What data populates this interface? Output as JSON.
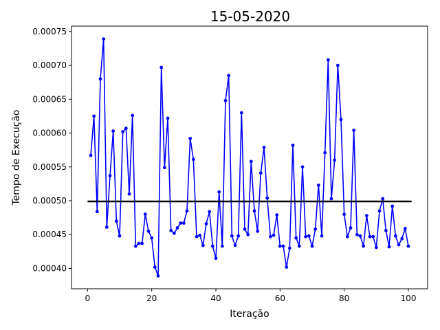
{
  "chart_data": {
    "type": "line",
    "title": "15-05-2020",
    "xlabel": "Iteração",
    "ylabel": "Tempo de Execução",
    "xlim": [
      -5,
      106
    ],
    "ylim": [
      0.00037,
      0.000758
    ],
    "x_ticks": [
      0,
      20,
      40,
      60,
      80,
      100
    ],
    "x_tick_labels": [
      "0",
      "20",
      "40",
      "60",
      "80",
      "100"
    ],
    "y_ticks": [
      0.0004,
      0.00045,
      0.0005,
      0.00055,
      0.0006,
      0.00065,
      0.0007,
      0.00075
    ],
    "y_tick_labels": [
      "0.00040",
      "0.00045",
      "0.00050",
      "0.00055",
      "0.00060",
      "0.00065",
      "0.00070",
      "0.00075"
    ],
    "grid": false,
    "series": [
      {
        "color": "#0000ff",
        "marker": "circle",
        "x": [
          1,
          2,
          3,
          4,
          5,
          6,
          7,
          8,
          9,
          10,
          11,
          12,
          13,
          14,
          15,
          16,
          17,
          18,
          19,
          20,
          21,
          22,
          23,
          24,
          25,
          26,
          27,
          28,
          29,
          30,
          31,
          32,
          33,
          34,
          35,
          36,
          37,
          38,
          39,
          40,
          41,
          42,
          43,
          44,
          45,
          46,
          47,
          48,
          49,
          50,
          51,
          52,
          53,
          54,
          55,
          56,
          57,
          58,
          59,
          60,
          61,
          62,
          63,
          64,
          65,
          66,
          67,
          68,
          69,
          70,
          71,
          72,
          73,
          74,
          75,
          76,
          77,
          78,
          79,
          80,
          81,
          82,
          83,
          84,
          85,
          86,
          87,
          88,
          89,
          90,
          91,
          92,
          93,
          94,
          95,
          96,
          97,
          98,
          99,
          100
        ],
        "values": [
          0.000567,
          0.000625,
          0.000484,
          0.00068,
          0.000739,
          0.000461,
          0.000537,
          0.000603,
          0.00047,
          0.000448,
          0.000602,
          0.000607,
          0.00051,
          0.000626,
          0.000433,
          0.000437,
          0.000437,
          0.00048,
          0.000455,
          0.000445,
          0.000402,
          0.000389,
          0.000697,
          0.000549,
          0.000622,
          0.000456,
          0.000452,
          0.00046,
          0.000467,
          0.000467,
          0.000485,
          0.000592,
          0.000561,
          0.000447,
          0.000449,
          0.000434,
          0.000466,
          0.000484,
          0.000433,
          0.000415,
          0.000513,
          0.000433,
          0.000648,
          0.000685,
          0.000448,
          0.000434,
          0.000448,
          0.00063,
          0.000458,
          0.00045,
          0.000558,
          0.000485,
          0.000455,
          0.000541,
          0.000579,
          0.000504,
          0.000447,
          0.000449,
          0.000479,
          0.000433,
          0.000433,
          0.000402,
          0.00043,
          0.000582,
          0.000445,
          0.000433,
          0.00055,
          0.000447,
          0.000448,
          0.000433,
          0.000458,
          0.000523,
          0.000448,
          0.000571,
          0.000708,
          0.000503,
          0.00056,
          0.0007,
          0.00062,
          0.00048,
          0.000447,
          0.00046,
          0.000604,
          0.00045,
          0.000448,
          0.000433,
          0.000478,
          0.000447,
          0.000447,
          0.000431,
          0.000485,
          0.000503,
          0.000456,
          0.000432,
          0.000492,
          0.000448,
          0.000435,
          0.000444,
          0.000459,
          0.000433
        ]
      },
      {
        "color": "#000000",
        "marker": "none",
        "x": [
          0,
          101
        ],
        "values": [
          0.000499,
          0.000499
        ]
      }
    ]
  }
}
